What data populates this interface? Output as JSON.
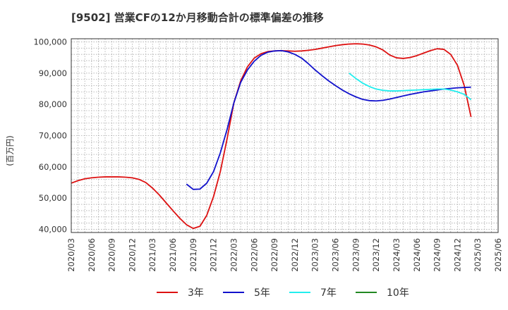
{
  "chart_data": {
    "type": "line",
    "title": "[9502]  営業CFの12か月移動合計の標準偏差の推移",
    "ylabel": "(百万円)",
    "xlabel": "",
    "ylim": [
      39000,
      101000
    ],
    "xlim": [
      "2020/03",
      "2025/06"
    ],
    "y_ticks": [
      "40,000",
      "50,000",
      "60,000",
      "70,000",
      "80,000",
      "90,000",
      "100,000"
    ],
    "x_ticks": [
      "2020/03",
      "2020/06",
      "2020/09",
      "2020/12",
      "2021/03",
      "2021/06",
      "2021/09",
      "2021/12",
      "2022/03",
      "2022/06",
      "2022/09",
      "2022/12",
      "2023/03",
      "2023/06",
      "2023/09",
      "2023/12",
      "2024/03",
      "2024/06",
      "2024/09",
      "2024/12",
      "2025/03",
      "2025/06"
    ],
    "grid": true,
    "legend_position": "bottom",
    "series": [
      {
        "name": "3年",
        "color": "#dd1111",
        "points": [
          [
            "2020/03",
            54800
          ],
          [
            "2020/04",
            55600
          ],
          [
            "2020/05",
            56200
          ],
          [
            "2020/06",
            56500
          ],
          [
            "2020/07",
            56700
          ],
          [
            "2020/08",
            56800
          ],
          [
            "2020/09",
            56800
          ],
          [
            "2020/10",
            56800
          ],
          [
            "2020/11",
            56700
          ],
          [
            "2020/12",
            56500
          ],
          [
            "2021/01",
            56000
          ],
          [
            "2021/02",
            55000
          ],
          [
            "2021/03",
            53200
          ],
          [
            "2021/04",
            51000
          ],
          [
            "2021/05",
            48500
          ],
          [
            "2021/06",
            46000
          ],
          [
            "2021/07",
            43600
          ],
          [
            "2021/08",
            41500
          ],
          [
            "2021/09",
            40300
          ],
          [
            "2021/10",
            41000
          ],
          [
            "2021/11",
            44500
          ],
          [
            "2021/12",
            50500
          ],
          [
            "2022/01",
            58500
          ],
          [
            "2022/02",
            69000
          ],
          [
            "2022/03",
            80500
          ],
          [
            "2022/04",
            87500
          ],
          [
            "2022/05",
            92000
          ],
          [
            "2022/06",
            94800
          ],
          [
            "2022/07",
            96200
          ],
          [
            "2022/08",
            96900
          ],
          [
            "2022/09",
            97100
          ],
          [
            "2022/10",
            97200
          ],
          [
            "2022/11",
            97100
          ],
          [
            "2022/12",
            97000
          ],
          [
            "2023/01",
            97100
          ],
          [
            "2023/02",
            97300
          ],
          [
            "2023/03",
            97600
          ],
          [
            "2023/04",
            98000
          ],
          [
            "2023/05",
            98400
          ],
          [
            "2023/06",
            98800
          ],
          [
            "2023/07",
            99100
          ],
          [
            "2023/08",
            99300
          ],
          [
            "2023/09",
            99400
          ],
          [
            "2023/10",
            99300
          ],
          [
            "2023/11",
            99000
          ],
          [
            "2023/12",
            98400
          ],
          [
            "2024/01",
            97400
          ],
          [
            "2024/02",
            95800
          ],
          [
            "2024/03",
            94900
          ],
          [
            "2024/04",
            94700
          ],
          [
            "2024/05",
            95000
          ],
          [
            "2024/06",
            95600
          ],
          [
            "2024/07",
            96400
          ],
          [
            "2024/08",
            97200
          ],
          [
            "2024/09",
            97800
          ],
          [
            "2024/10",
            97600
          ],
          [
            "2024/11",
            96000
          ],
          [
            "2024/12",
            92500
          ],
          [
            "2025/01",
            86000
          ],
          [
            "2025/02",
            76000
          ]
        ]
      },
      {
        "name": "5年",
        "color": "#1111cc",
        "points": [
          [
            "2021/08",
            54500
          ],
          [
            "2021/09",
            52800
          ],
          [
            "2021/10",
            52900
          ],
          [
            "2021/11",
            54800
          ],
          [
            "2021/12",
            58500
          ],
          [
            "2022/01",
            64500
          ],
          [
            "2022/02",
            72000
          ],
          [
            "2022/03",
            80500
          ],
          [
            "2022/04",
            87000
          ],
          [
            "2022/05",
            91000
          ],
          [
            "2022/06",
            93800
          ],
          [
            "2022/07",
            95700
          ],
          [
            "2022/08",
            96700
          ],
          [
            "2022/09",
            97100
          ],
          [
            "2022/10",
            97200
          ],
          [
            "2022/11",
            96800
          ],
          [
            "2022/12",
            96000
          ],
          [
            "2023/01",
            94800
          ],
          [
            "2023/02",
            93000
          ],
          [
            "2023/03",
            91000
          ],
          [
            "2023/04",
            89200
          ],
          [
            "2023/05",
            87500
          ],
          [
            "2023/06",
            86000
          ],
          [
            "2023/07",
            84600
          ],
          [
            "2023/08",
            83400
          ],
          [
            "2023/09",
            82400
          ],
          [
            "2023/10",
            81600
          ],
          [
            "2023/11",
            81200
          ],
          [
            "2023/12",
            81100
          ],
          [
            "2024/01",
            81300
          ],
          [
            "2024/02",
            81700
          ],
          [
            "2024/03",
            82200
          ],
          [
            "2024/04",
            82700
          ],
          [
            "2024/05",
            83200
          ],
          [
            "2024/06",
            83600
          ],
          [
            "2024/07",
            84000
          ],
          [
            "2024/08",
            84300
          ],
          [
            "2024/09",
            84600
          ],
          [
            "2024/10",
            84900
          ],
          [
            "2024/11",
            85100
          ],
          [
            "2024/12",
            85300
          ],
          [
            "2025/01",
            85400
          ],
          [
            "2025/02",
            85500
          ]
        ]
      },
      {
        "name": "7年",
        "color": "#22eeee",
        "points": [
          [
            "2023/08",
            90000
          ],
          [
            "2023/09",
            88300
          ],
          [
            "2023/10",
            86800
          ],
          [
            "2023/11",
            85700
          ],
          [
            "2023/12",
            84900
          ],
          [
            "2024/01",
            84500
          ],
          [
            "2024/02",
            84300
          ],
          [
            "2024/03",
            84300
          ],
          [
            "2024/04",
            84400
          ],
          [
            "2024/05",
            84500
          ],
          [
            "2024/06",
            84600
          ],
          [
            "2024/07",
            84700
          ],
          [
            "2024/08",
            84800
          ],
          [
            "2024/09",
            84900
          ],
          [
            "2024/10",
            84900
          ],
          [
            "2024/11",
            84600
          ],
          [
            "2024/12",
            84000
          ],
          [
            "2025/01",
            83200
          ],
          [
            "2025/02",
            81500
          ]
        ]
      },
      {
        "name": "10年",
        "color": "#228822",
        "points": []
      }
    ]
  }
}
